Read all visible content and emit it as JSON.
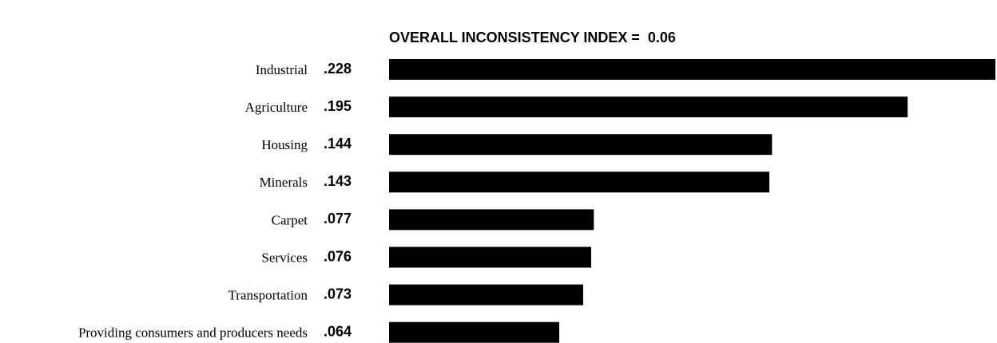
{
  "chart_data": {
    "type": "bar",
    "orientation": "horizontal",
    "title": "OVERALL INCONSISTENCY INDEX =  0.06",
    "categories": [
      "Industrial",
      "Agriculture",
      "Housing",
      "Minerals",
      "Carpet",
      "Services",
      "Transportation",
      "Providing consumers and producers needs"
    ],
    "values": [
      0.228,
      0.195,
      0.144,
      0.143,
      0.077,
      0.076,
      0.073,
      0.064
    ],
    "value_labels": [
      ".228",
      ".195",
      ".144",
      ".143",
      ".077",
      ".076",
      ".073",
      ".064"
    ],
    "color": "#000000"
  }
}
